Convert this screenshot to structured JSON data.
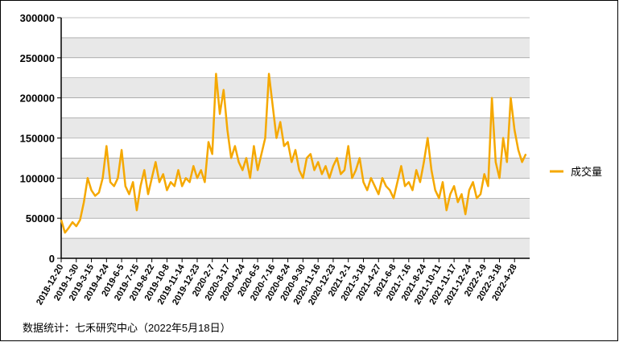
{
  "chart_data": {
    "type": "line",
    "categories": [
      "2018-12-20",
      null,
      null,
      null,
      "2019-1-30",
      null,
      null,
      null,
      "2019-3-15",
      null,
      null,
      null,
      "2019-4-24",
      null,
      null,
      null,
      "2019-6-5",
      null,
      null,
      null,
      "2019-7-15",
      null,
      null,
      null,
      "2019-8-22",
      null,
      null,
      null,
      "2019-10-8",
      null,
      null,
      null,
      "2019-11-14",
      null,
      null,
      null,
      "2019-12-23",
      null,
      null,
      null,
      "2020-2-7",
      null,
      null,
      null,
      "2020-3-17",
      null,
      null,
      null,
      "2020-4-24",
      null,
      null,
      null,
      "2020-6-5",
      null,
      null,
      null,
      "2020-7-16",
      null,
      null,
      null,
      "2020-8-24",
      null,
      null,
      null,
      "2020-9-30",
      null,
      null,
      null,
      "2020-11-16",
      null,
      null,
      null,
      "2020-12-23",
      null,
      null,
      null,
      "2021-2-1",
      null,
      null,
      null,
      "2021-3-18",
      null,
      null,
      null,
      "2021-4-27",
      null,
      null,
      null,
      "2021-6-8",
      null,
      null,
      null,
      "2021-7-16",
      null,
      null,
      null,
      "2021-8-24",
      null,
      null,
      null,
      "2021-10-11",
      null,
      null,
      null,
      "2021-11-17",
      null,
      null,
      null,
      "2021-12-24",
      null,
      null,
      null,
      "2022-2-9",
      null,
      null,
      null,
      "2022-3-18",
      null,
      null,
      null,
      "2022-4-28",
      null,
      null,
      null
    ],
    "series": [
      {
        "name": "成交量",
        "color": "#f5a800",
        "values": [
          48000,
          32000,
          38000,
          45000,
          40000,
          48000,
          70000,
          100000,
          85000,
          78000,
          82000,
          100000,
          140000,
          95000,
          90000,
          100000,
          135000,
          90000,
          80000,
          95000,
          60000,
          90000,
          110000,
          80000,
          100000,
          120000,
          95000,
          105000,
          85000,
          95000,
          90000,
          110000,
          90000,
          100000,
          95000,
          115000,
          100000,
          110000,
          95000,
          145000,
          130000,
          230000,
          180000,
          210000,
          160000,
          125000,
          140000,
          120000,
          110000,
          125000,
          100000,
          140000,
          110000,
          130000,
          150000,
          230000,
          190000,
          150000,
          170000,
          140000,
          145000,
          120000,
          135000,
          110000,
          100000,
          125000,
          130000,
          110000,
          120000,
          105000,
          115000,
          100000,
          115000,
          125000,
          105000,
          110000,
          140000,
          100000,
          110000,
          125000,
          95000,
          85000,
          100000,
          90000,
          80000,
          100000,
          90000,
          85000,
          75000,
          95000,
          115000,
          90000,
          95000,
          85000,
          110000,
          95000,
          120000,
          150000,
          110000,
          85000,
          75000,
          95000,
          60000,
          80000,
          90000,
          70000,
          80000,
          55000,
          85000,
          95000,
          75000,
          80000,
          105000,
          90000,
          200000,
          120000,
          100000,
          150000,
          120000,
          200000,
          160000,
          135000,
          120000,
          130000
        ]
      }
    ],
    "ylim": [
      0,
      300000
    ],
    "yticks": [
      0,
      50000,
      100000,
      150000,
      200000,
      250000,
      300000
    ],
    "grid": true,
    "source": "数据统计：七禾研究中心（2022年5月18日）"
  }
}
